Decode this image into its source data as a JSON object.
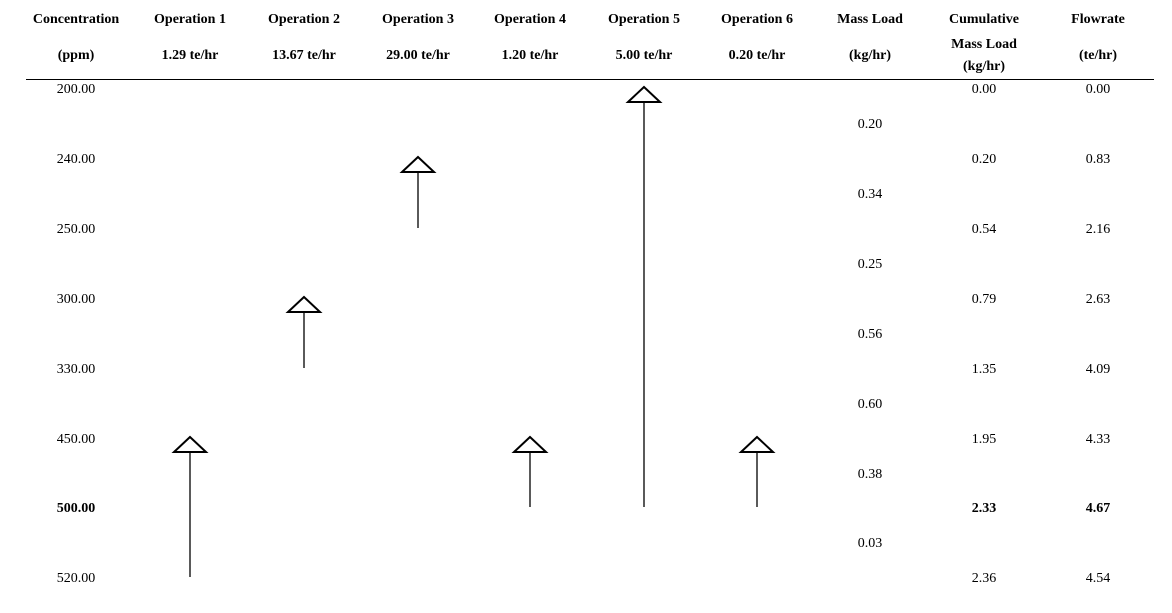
{
  "headers": [
    {
      "line1": "Concentration",
      "line2": "(ppm)"
    },
    {
      "line1": "Operation 1",
      "line2": "1.29 te/hr"
    },
    {
      "line1": "Operation 2",
      "line2": "13.67 te/hr"
    },
    {
      "line1": "Operation 3",
      "line2": "29.00 te/hr"
    },
    {
      "line1": "Operation 4",
      "line2": "1.20 te/hr"
    },
    {
      "line1": "Operation 5",
      "line2": "5.00 te/hr"
    },
    {
      "line1": "Operation 6",
      "line2": "0.20 te/hr"
    },
    {
      "line1": "Mass Load",
      "line2": "(kg/hr)"
    },
    {
      "line1": "Cumulative",
      "line2": "Mass Load",
      "line3": "(kg/hr)"
    },
    {
      "line1": "Flowrate",
      "line2": "(te/hr)"
    }
  ],
  "concentrations": [
    "200.00",
    "240.00",
    "250.00",
    "300.00",
    "330.00",
    "450.00",
    "500.00",
    "520.00"
  ],
  "cumulative_mass_load": [
    "0.00",
    "0.20",
    "0.54",
    "0.79",
    "1.35",
    "1.95",
    "2.33",
    "2.36"
  ],
  "flowrate": [
    "0.00",
    "0.83",
    "2.16",
    "2.63",
    "4.09",
    "4.33",
    "4.67",
    "4.54"
  ],
  "mass_load_intervals": [
    "0.20",
    "0.34",
    "0.25",
    "0.56",
    "0.60",
    "0.38",
    "0.03"
  ],
  "pinch_row_index": 6,
  "operations": [
    {
      "name": "Operation 1",
      "start_ppm": 450,
      "end_ppm": 520
    },
    {
      "name": "Operation 2",
      "start_ppm": 300,
      "end_ppm": 330
    },
    {
      "name": "Operation 3",
      "start_ppm": 240,
      "end_ppm": 250
    },
    {
      "name": "Operation 4",
      "start_ppm": 450,
      "end_ppm": 500
    },
    {
      "name": "Operation 5",
      "start_ppm": 200,
      "end_ppm": 500
    },
    {
      "name": "Operation 6",
      "start_ppm": 450,
      "end_ppm": 500
    }
  ]
}
